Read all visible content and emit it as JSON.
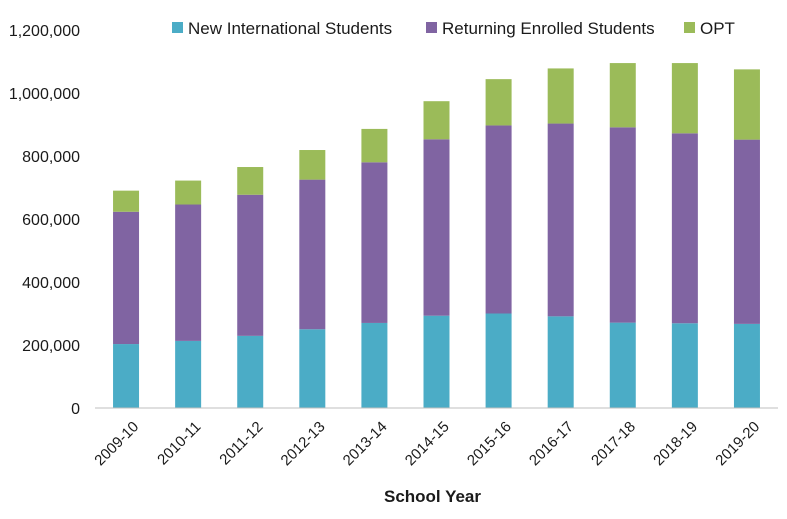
{
  "chart_data": {
    "type": "bar",
    "stacked": true,
    "title": "",
    "xlabel": "School Year",
    "ylabel": "",
    "ylim": [
      0,
      1200000
    ],
    "yticks": [
      0,
      200000,
      400000,
      600000,
      800000,
      1000000,
      1200000
    ],
    "ytick_labels": [
      "0",
      "200,000",
      "400,000",
      "600,000",
      "800,000",
      "1,000,000",
      "1,200,000"
    ],
    "grid": false,
    "legend_position": "top",
    "categories": [
      "2009-10",
      "2010-11",
      "2011-12",
      "2012-13",
      "2013-14",
      "2014-15",
      "2015-16",
      "2016-17",
      "2017-18",
      "2018-19",
      "2019-20"
    ],
    "series": [
      {
        "name": "New International Students",
        "color": "#4bacc6",
        "values": [
          203000,
          213000,
          229000,
          250000,
          270000,
          293000,
          300000,
          291000,
          271000,
          269000,
          267000
        ]
      },
      {
        "name": "Returning Enrolled Students",
        "color": "#8064a2",
        "values": [
          420000,
          433000,
          448000,
          475000,
          510000,
          560000,
          597000,
          612000,
          620000,
          603000,
          585000
        ]
      },
      {
        "name": "OPT",
        "color": "#9bbb59",
        "values": [
          67000,
          76000,
          88000,
          94000,
          106000,
          121000,
          147000,
          175000,
          204000,
          223000,
          223000
        ]
      }
    ]
  }
}
